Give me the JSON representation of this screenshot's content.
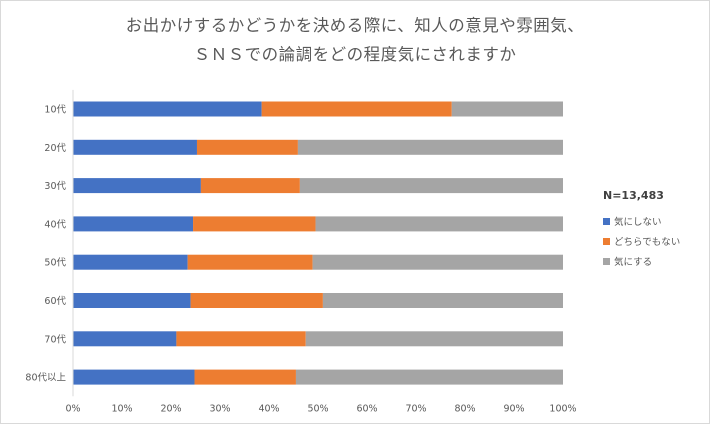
{
  "chart_data": {
    "type": "bar",
    "orientation": "horizontal",
    "stacked": "percent",
    "title_lines": [
      "お出かけするかどうかを決める際に、知人の意見や雰囲気、",
      "ＳＮＳでの論調をどの程度気にされますか"
    ],
    "categories": [
      "10代",
      "20代",
      "30代",
      "40代",
      "50代",
      "60代",
      "70代",
      "80代以上"
    ],
    "series": [
      {
        "name": "気にしない",
        "color": "#4472C4",
        "values": [
          0.385,
          0.253,
          0.261,
          0.245,
          0.234,
          0.24,
          0.211,
          0.248
        ]
      },
      {
        "name": "どちらでもない",
        "color": "#ED7D31",
        "values": [
          0.388,
          0.206,
          0.202,
          0.25,
          0.255,
          0.27,
          0.264,
          0.207
        ]
      },
      {
        "name": "気にする",
        "color": "#A5A5A5",
        "values": [
          0.227,
          0.541,
          0.537,
          0.505,
          0.511,
          0.49,
          0.525,
          0.545
        ]
      }
    ],
    "x_ticks": [
      "0%",
      "10%",
      "20%",
      "30%",
      "40%",
      "50%",
      "60%",
      "70%",
      "80%",
      "90%",
      "100%"
    ],
    "xlim": [
      0,
      1
    ],
    "legend_title": "N=13,483",
    "legend_position": "right",
    "grid": false
  }
}
